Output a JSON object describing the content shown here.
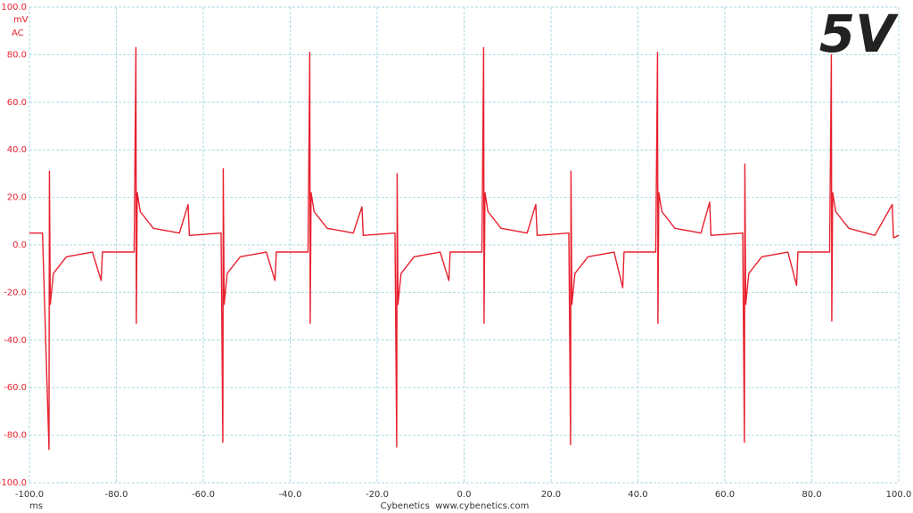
{
  "chart_data": {
    "type": "line",
    "annotation": "5V",
    "y_unit": "mV",
    "y_coupling": "AC",
    "x_unit": "ms",
    "footer": "Cybenetics  www.cybenetics.com",
    "color": "#e8202e",
    "grid": true,
    "xlim": [
      -100,
      100
    ],
    "xticks": [
      {
        "value": -100,
        "label": "-100.0"
      },
      {
        "value": -80,
        "label": "-80.0"
      },
      {
        "value": -60,
        "label": "-60.0"
      },
      {
        "value": -40,
        "label": "-40.0"
      },
      {
        "value": -20,
        "label": "-20.0"
      },
      {
        "value": 0,
        "label": "0.0"
      },
      {
        "value": 20,
        "label": "20.0"
      },
      {
        "value": 40,
        "label": "40.0"
      },
      {
        "value": 60,
        "label": "60.0"
      },
      {
        "value": 80,
        "label": "80.0"
      },
      {
        "value": 100,
        "label": "100.0"
      }
    ],
    "ylim": [
      -100,
      100
    ],
    "yticks": [
      {
        "value": -100,
        "label": "-100.0"
      },
      {
        "value": -80,
        "label": "-80.0"
      },
      {
        "value": -60,
        "label": "-60.0"
      },
      {
        "value": -40,
        "label": "-40.0"
      },
      {
        "value": -20,
        "label": "-20.0"
      },
      {
        "value": 0,
        "label": "0.0"
      },
      {
        "value": 20,
        "label": "20.0"
      },
      {
        "value": 40,
        "label": "40.0"
      },
      {
        "value": 60,
        "label": "60.0"
      },
      {
        "value": 80,
        "label": "80.0"
      },
      {
        "value": 100,
        "label": "100.0"
      }
    ],
    "x": [
      -100,
      -97,
      -95.5,
      -95.4,
      -95.2,
      -94.5,
      -91.5,
      -85.5,
      -83.5,
      -83.2,
      -75.9,
      -75.5,
      -75.4,
      -75.2,
      -74.5,
      -71.5,
      -65.5,
      -63.5,
      -63.2,
      -55.9,
      -55.5,
      -55.4,
      -55.2,
      -54.5,
      -51.5,
      -45.5,
      -43.5,
      -43.2,
      -35.9,
      -35.5,
      -35.4,
      -35.2,
      -34.5,
      -31.5,
      -25.5,
      -23.5,
      -23.2,
      -15.9,
      -15.5,
      -15.4,
      -15.2,
      -14.5,
      -11.5,
      -5.5,
      -3.5,
      -3.2,
      4.1,
      4.5,
      4.6,
      4.8,
      5.5,
      8.5,
      14.5,
      16.5,
      16.8,
      24.1,
      24.5,
      24.6,
      24.8,
      25.5,
      28.5,
      34.5,
      36.5,
      36.8,
      44.1,
      44.5,
      44.6,
      44.8,
      45.5,
      48.5,
      54.5,
      56.5,
      56.8,
      64.1,
      64.5,
      64.6,
      64.8,
      65.5,
      68.5,
      74.5,
      76.5,
      76.8,
      84.1,
      84.5,
      84.6,
      84.8,
      85.5,
      88.5,
      94.5,
      98.5,
      98.8,
      100
    ],
    "values": [
      5,
      5,
      -86,
      31,
      -25,
      -12,
      -5,
      -3,
      -15,
      -3,
      -3,
      83,
      -33,
      22,
      14,
      7,
      5,
      17,
      4,
      5,
      -83,
      32,
      -25,
      -12,
      -5,
      -3,
      -15,
      -3,
      -3,
      81,
      -33,
      22,
      14,
      7,
      5,
      16,
      4,
      5,
      -85,
      30,
      -25,
      -12,
      -5,
      -3,
      -15,
      -3,
      -3,
      83,
      -33,
      22,
      14,
      7,
      5,
      17,
      4,
      5,
      -84,
      31,
      -25,
      -12,
      -5,
      -3,
      -18,
      -3,
      -3,
      81,
      -33,
      22,
      14,
      7,
      5,
      18,
      4,
      5,
      -83,
      34,
      -25,
      -12,
      -5,
      -3,
      -17,
      -3,
      -3,
      80,
      -32,
      22,
      14,
      7,
      4,
      17,
      3,
      4
    ]
  }
}
